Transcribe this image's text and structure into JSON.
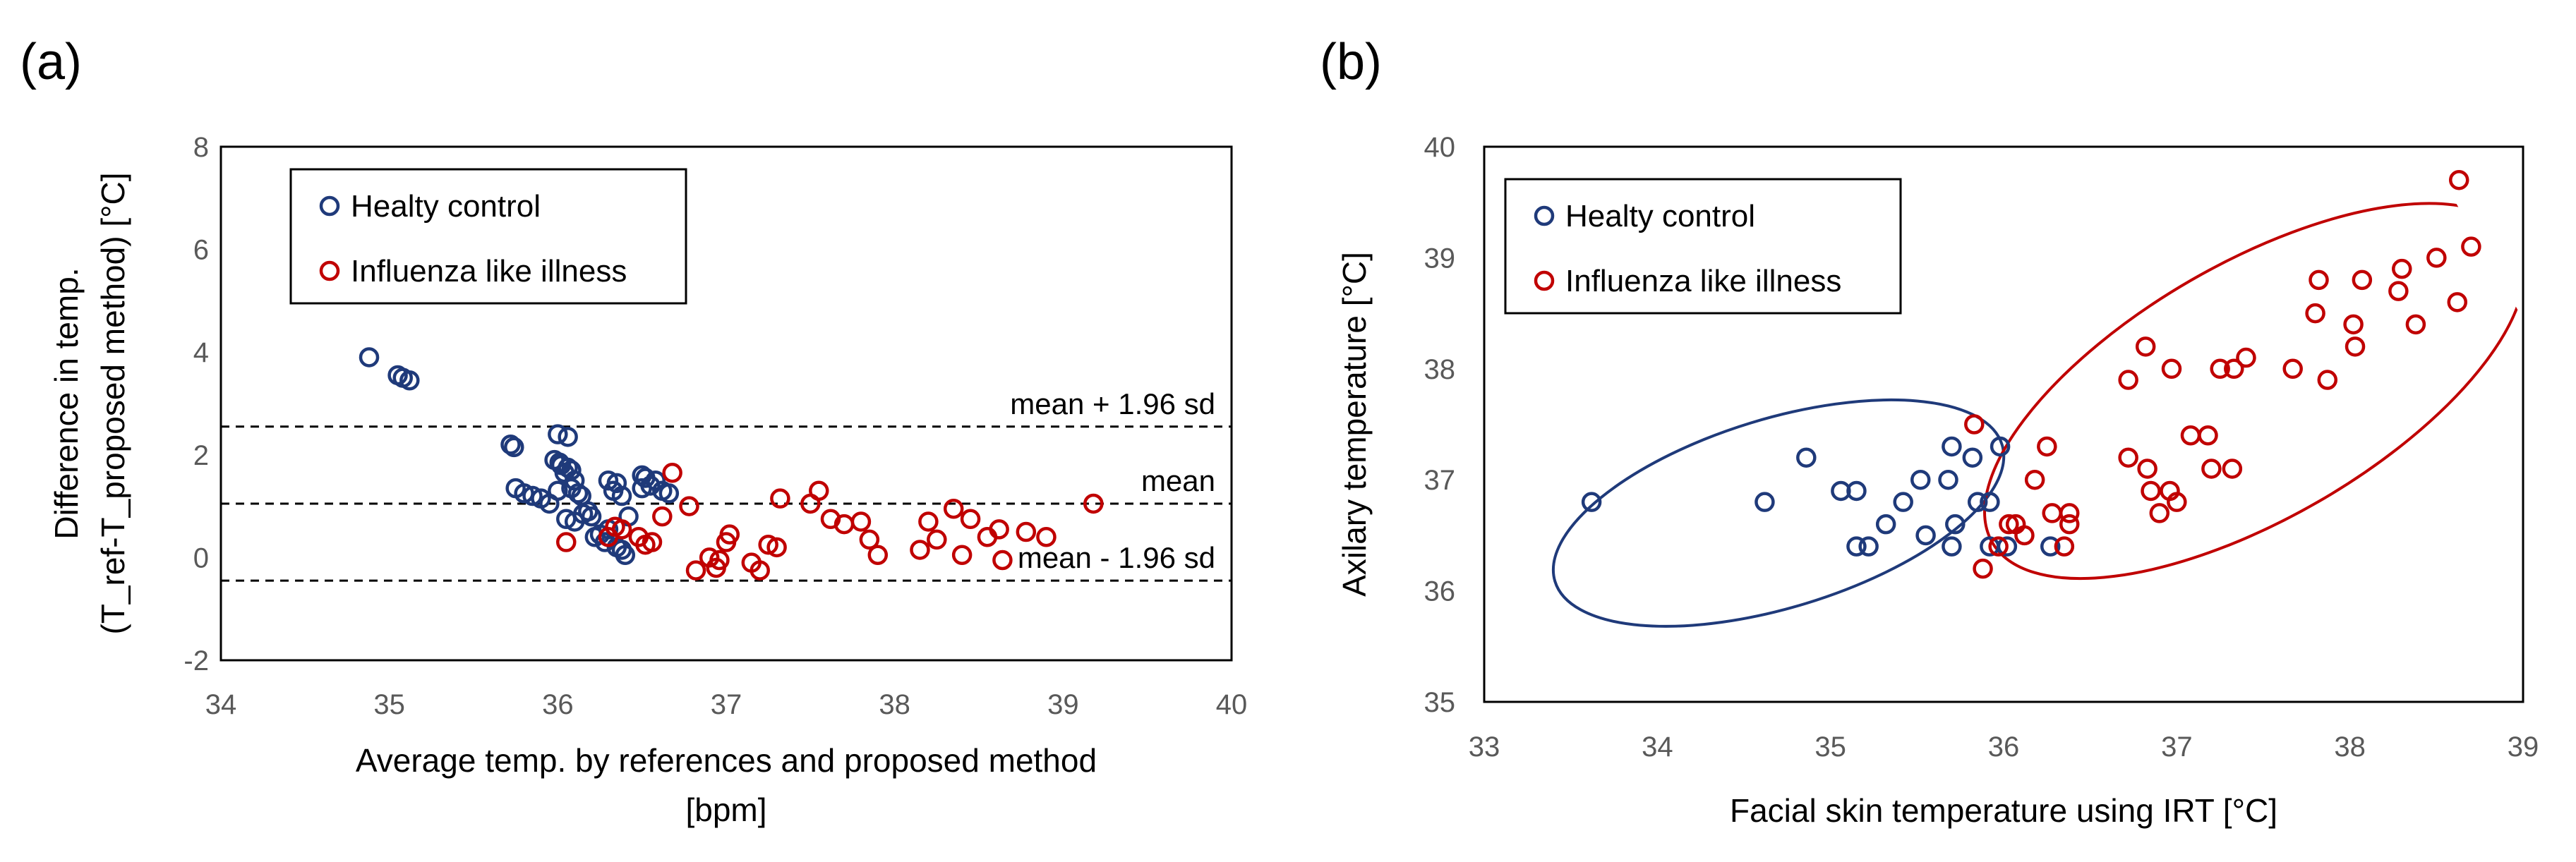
{
  "chart_data": [
    {
      "panel_label": "(a)",
      "type": "scatter",
      "xlabel": "Average temp. by references and proposed method",
      "xlabel_unit": "[bpm]",
      "ylabel": "Difference in temp.",
      "ylabel_line2": "(T_ref-T_proposed method) [°C]",
      "xlim": [
        34,
        40
      ],
      "ylim": [
        -2,
        8
      ],
      "xticks": [
        34,
        35,
        36,
        37,
        38,
        39,
        40
      ],
      "yticks": [
        -2,
        0,
        2,
        4,
        6,
        8
      ],
      "legend": {
        "position": "top-left",
        "entries": [
          "Healty control",
          "Influenza like illness"
        ]
      },
      "reference_lines": [
        {
          "label": "mean + 1.96 sd",
          "y": 2.55
        },
        {
          "label": "mean",
          "y": 1.05
        },
        {
          "label": "mean - 1.96 sd",
          "y": -0.45
        }
      ],
      "series": [
        {
          "name": "Healty control",
          "color": "#1f3a7a",
          "points": [
            [
              34.88,
              3.9
            ],
            [
              35.05,
              3.55
            ],
            [
              35.12,
              3.45
            ],
            [
              35.08,
              3.5
            ],
            [
              35.72,
              2.2
            ],
            [
              35.74,
              2.15
            ],
            [
              36.0,
              2.4
            ],
            [
              36.06,
              2.35
            ],
            [
              35.75,
              1.35
            ],
            [
              35.8,
              1.25
            ],
            [
              35.85,
              1.2
            ],
            [
              35.9,
              1.15
            ],
            [
              35.95,
              1.05
            ],
            [
              36.0,
              1.3
            ],
            [
              36.02,
              1.8
            ],
            [
              36.06,
              1.75
            ],
            [
              36.04,
              1.65
            ],
            [
              36.1,
              1.5
            ],
            [
              36.08,
              1.35
            ],
            [
              36.12,
              1.25
            ],
            [
              36.14,
              1.2
            ],
            [
              36.05,
              0.75
            ],
            [
              36.1,
              0.7
            ],
            [
              36.15,
              0.85
            ],
            [
              36.18,
              0.9
            ],
            [
              36.2,
              0.8
            ],
            [
              36.22,
              0.4
            ],
            [
              36.25,
              0.45
            ],
            [
              36.28,
              0.3
            ],
            [
              36.3,
              1.5
            ],
            [
              36.35,
              1.45
            ],
            [
              36.33,
              1.3
            ],
            [
              36.38,
              1.2
            ],
            [
              36.42,
              0.8
            ],
            [
              36.3,
              0.55
            ],
            [
              36.35,
              0.2
            ],
            [
              36.38,
              0.15
            ],
            [
              36.4,
              0.05
            ],
            [
              36.5,
              1.6
            ],
            [
              36.52,
              1.55
            ],
            [
              36.55,
              1.4
            ],
            [
              36.58,
              1.5
            ],
            [
              36.62,
              1.3
            ],
            [
              36.66,
              1.25
            ],
            [
              36.5,
              1.35
            ],
            [
              36.08,
              1.7
            ],
            [
              35.98,
              1.9
            ],
            [
              36.01,
              1.85
            ]
          ]
        },
        {
          "name": "Influenza like illness",
          "color": "#c00000",
          "points": [
            [
              36.05,
              0.3
            ],
            [
              36.3,
              0.4
            ],
            [
              36.34,
              0.6
            ],
            [
              36.38,
              0.55
            ],
            [
              36.48,
              0.4
            ],
            [
              36.52,
              0.25
            ],
            [
              36.56,
              0.3
            ],
            [
              36.62,
              0.8
            ],
            [
              36.68,
              1.65
            ],
            [
              36.78,
              1.0
            ],
            [
              36.82,
              -0.25
            ],
            [
              36.9,
              0.0
            ],
            [
              36.94,
              -0.2
            ],
            [
              36.96,
              -0.05
            ],
            [
              37.0,
              0.3
            ],
            [
              37.02,
              0.45
            ],
            [
              37.15,
              -0.1
            ],
            [
              37.2,
              -0.25
            ],
            [
              37.25,
              0.25
            ],
            [
              37.3,
              0.2
            ],
            [
              37.32,
              1.15
            ],
            [
              37.5,
              1.05
            ],
            [
              37.55,
              1.3
            ],
            [
              37.62,
              0.75
            ],
            [
              37.7,
              0.65
            ],
            [
              37.8,
              0.7
            ],
            [
              37.85,
              0.35
            ],
            [
              37.9,
              0.05
            ],
            [
              38.15,
              0.15
            ],
            [
              38.2,
              0.7
            ],
            [
              38.25,
              0.35
            ],
            [
              38.35,
              0.95
            ],
            [
              38.4,
              0.05
            ],
            [
              38.45,
              0.75
            ],
            [
              38.55,
              0.4
            ],
            [
              38.62,
              0.55
            ],
            [
              38.64,
              -0.05
            ],
            [
              38.78,
              0.5
            ],
            [
              38.9,
              0.4
            ],
            [
              39.18,
              1.05
            ]
          ]
        }
      ]
    },
    {
      "panel_label": "(b)",
      "type": "scatter",
      "xlabel": "Facial skin temperature using IRT [°C]",
      "ylabel": "Axilary temperature [°C]",
      "xlim": [
        33,
        39
      ],
      "ylim": [
        35,
        40
      ],
      "xticks": [
        33,
        34,
        35,
        36,
        37,
        38,
        39
      ],
      "yticks": [
        35,
        36,
        37,
        38,
        39,
        40
      ],
      "legend": {
        "position": "top-left",
        "entries": [
          "Healty control",
          "Influenza like illness"
        ]
      },
      "ellipses": [
        {
          "series": "Healty control",
          "cx": 34.7,
          "cy": 36.7,
          "rx": 1.35,
          "ry": 0.85,
          "rotation_deg": -17
        },
        {
          "series": "Influenza like illness",
          "cx": 37.45,
          "cy": 37.8,
          "rx": 1.75,
          "ry": 1.15,
          "rotation_deg": -30
        }
      ],
      "series": [
        {
          "name": "Healty control",
          "color": "#1f3a7a",
          "points": [
            [
              33.62,
              36.8
            ],
            [
              34.62,
              36.8
            ],
            [
              34.86,
              37.2
            ],
            [
              35.06,
              36.9
            ],
            [
              35.15,
              36.9
            ],
            [
              35.15,
              36.4
            ],
            [
              35.22,
              36.4
            ],
            [
              35.32,
              36.6
            ],
            [
              35.42,
              36.8
            ],
            [
              35.52,
              37.0
            ],
            [
              35.55,
              36.5
            ],
            [
              35.68,
              37.0
            ],
            [
              35.7,
              37.3
            ],
            [
              35.72,
              36.6
            ],
            [
              35.7,
              36.4
            ],
            [
              35.82,
              37.2
            ],
            [
              35.85,
              36.8
            ],
            [
              35.92,
              36.8
            ],
            [
              35.98,
              37.3
            ],
            [
              35.92,
              36.4
            ],
            [
              36.02,
              36.4
            ],
            [
              36.27,
              36.4
            ]
          ]
        },
        {
          "name": "Influenza like illness",
          "color": "#c00000",
          "points": [
            [
              35.83,
              37.5
            ],
            [
              35.88,
              36.2
            ],
            [
              35.97,
              36.4
            ],
            [
              36.03,
              36.6
            ],
            [
              36.07,
              36.6
            ],
            [
              36.12,
              36.5
            ],
            [
              36.18,
              37.0
            ],
            [
              36.25,
              37.3
            ],
            [
              36.28,
              36.7
            ],
            [
              36.35,
              36.4
            ],
            [
              36.38,
              36.7
            ],
            [
              36.38,
              36.6
            ],
            [
              36.72,
              37.9
            ],
            [
              36.72,
              37.2
            ],
            [
              36.82,
              38.2
            ],
            [
              36.83,
              37.1
            ],
            [
              36.85,
              36.9
            ],
            [
              36.9,
              36.7
            ],
            [
              36.96,
              36.9
            ],
            [
              36.97,
              38.0
            ],
            [
              37.0,
              36.8
            ],
            [
              37.08,
              37.4
            ],
            [
              37.18,
              37.4
            ],
            [
              37.2,
              37.1
            ],
            [
              37.25,
              38.0
            ],
            [
              37.32,
              37.1
            ],
            [
              37.33,
              38.0
            ],
            [
              37.4,
              38.1
            ],
            [
              37.67,
              38.0
            ],
            [
              37.8,
              38.5
            ],
            [
              37.82,
              38.8
            ],
            [
              37.87,
              37.9
            ],
            [
              38.02,
              38.4
            ],
            [
              38.03,
              38.2
            ],
            [
              38.07,
              38.8
            ],
            [
              38.28,
              38.7
            ],
            [
              38.3,
              38.9
            ],
            [
              38.38,
              38.4
            ],
            [
              38.5,
              39.0
            ],
            [
              38.62,
              38.6
            ],
            [
              38.63,
              39.7
            ],
            [
              38.7,
              39.1
            ]
          ]
        }
      ]
    }
  ]
}
